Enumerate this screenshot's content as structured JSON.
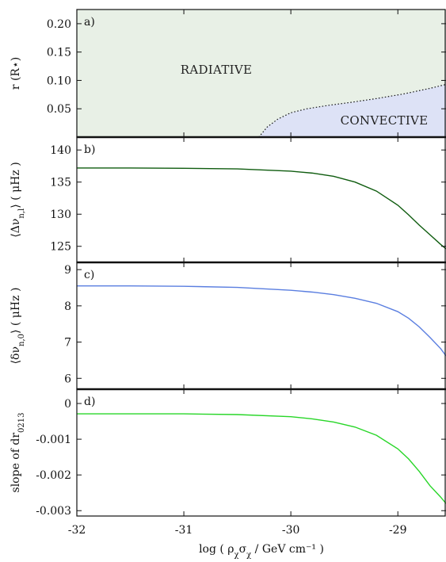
{
  "chart_data": [
    {
      "id": "a",
      "type": "area",
      "panel_label": "a)",
      "ylabel": "r (R⋆)",
      "ylim": [
        0,
        0.225
      ],
      "yticks": [
        0.05,
        0.1,
        0.15,
        0.2
      ],
      "ytick_labels": [
        "0.05",
        "0.10",
        "0.15",
        "0.20"
      ],
      "regions": [
        {
          "name": "RADIATIVE",
          "color": "#e8f0e6"
        },
        {
          "name": "CONVECTIVE",
          "color": "#dde2f6"
        }
      ],
      "boundary": {
        "style": "dotted",
        "x": [
          -30.3,
          -30.22,
          -30.12,
          -30.0,
          -29.85,
          -29.65,
          -29.45,
          -29.2,
          -28.95,
          -28.7,
          -28.55
        ],
        "y": [
          0.0,
          0.018,
          0.032,
          0.043,
          0.05,
          0.056,
          0.061,
          0.068,
          0.076,
          0.086,
          0.093
        ]
      }
    },
    {
      "id": "b",
      "type": "line",
      "panel_label": "b)",
      "ylabel": "⟨Δν_{n,l}⟩ ( μHz )",
      "ylim": [
        122.5,
        142
      ],
      "yticks": [
        125,
        130,
        135,
        140
      ],
      "ytick_labels": [
        "125",
        "130",
        "135",
        "140"
      ],
      "color": "#0f5c0f",
      "series": [
        {
          "x": [
            -32.0,
            -31.5,
            -31.0,
            -30.5,
            -30.0,
            -29.8,
            -29.6,
            -29.4,
            -29.2,
            -29.0,
            -28.9,
            -28.8,
            -28.7,
            -28.6,
            -28.55
          ],
          "y": [
            137.2,
            137.2,
            137.15,
            137.05,
            136.7,
            136.4,
            135.9,
            135.0,
            133.6,
            131.4,
            129.9,
            128.3,
            126.8,
            125.3,
            124.6
          ]
        }
      ]
    },
    {
      "id": "c",
      "type": "line",
      "panel_label": "c)",
      "ylabel": "⟨δν_{n,0}⟩ ( μHz )",
      "ylim": [
        5.7,
        9.2
      ],
      "yticks": [
        6,
        7,
        8,
        9
      ],
      "ytick_labels": [
        "6",
        "7",
        "8",
        "9"
      ],
      "color": "#5a7ee0",
      "series": [
        {
          "x": [
            -32.0,
            -31.5,
            -31.0,
            -30.5,
            -30.0,
            -29.8,
            -29.6,
            -29.4,
            -29.2,
            -29.0,
            -28.9,
            -28.8,
            -28.7,
            -28.6,
            -28.55
          ],
          "y": [
            8.55,
            8.55,
            8.54,
            8.51,
            8.43,
            8.38,
            8.31,
            8.21,
            8.07,
            7.84,
            7.66,
            7.42,
            7.13,
            6.82,
            6.62
          ]
        }
      ]
    },
    {
      "id": "d",
      "type": "line",
      "panel_label": "d)",
      "ylabel": "slope of dr_{0213}",
      "ylim": [
        -0.00315,
        0.0004
      ],
      "yticks": [
        0,
        -0.001,
        -0.002,
        -0.003
      ],
      "ytick_labels": [
        "0",
        "-0.001",
        "-0.002",
        "-0.003"
      ],
      "xlabel": "log ( ρ_χσ_χ / GeV cm⁻¹ )",
      "xlim": [
        -32,
        -28.55
      ],
      "xticks": [
        -32,
        -31,
        -30,
        -29
      ],
      "xtick_labels": [
        "-32",
        "-31",
        "-30",
        "-29"
      ],
      "color": "#28d628",
      "series": [
        {
          "x": [
            -32.0,
            -31.5,
            -31.0,
            -30.5,
            -30.0,
            -29.8,
            -29.6,
            -29.4,
            -29.2,
            -29.0,
            -28.9,
            -28.8,
            -28.7,
            -28.6,
            -28.55
          ],
          "y": [
            -0.00029,
            -0.00029,
            -0.00029,
            -0.00031,
            -0.00037,
            -0.00043,
            -0.00052,
            -0.00066,
            -0.00089,
            -0.00127,
            -0.00155,
            -0.0019,
            -0.0023,
            -0.00262,
            -0.0028
          ]
        }
      ]
    }
  ]
}
